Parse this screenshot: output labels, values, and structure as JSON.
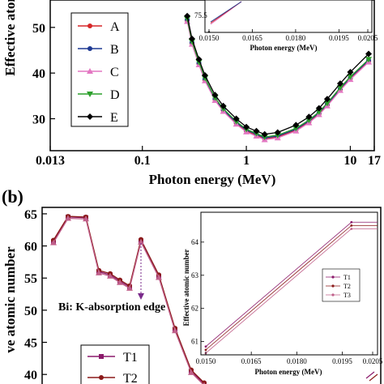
{
  "panel_labels": {
    "a": "",
    "b": "(b)"
  },
  "colors": {
    "A": "#d62728",
    "B": "#1f3a93",
    "C": "#e377c2",
    "D": "#2ca02c",
    "E": "#000000",
    "T1": "#8b1a6b",
    "T2": "#8b1a1a",
    "T3": "#c0608a"
  },
  "chart_data": [
    {
      "id": "a-main",
      "type": "line",
      "xlabel": "Photon energy (MeV)",
      "ylabel": "Effective atomic",
      "xscale": "log",
      "xticks": [
        "0.013",
        "0.1",
        "1",
        "10",
        "17"
      ],
      "yticks": [
        "30",
        "40",
        "50"
      ],
      "legend": [
        "A",
        "B",
        "C",
        "D",
        "E"
      ],
      "legend_placement": "top-left",
      "x": [
        0.27,
        0.3,
        0.35,
        0.4,
        0.5,
        0.6,
        0.8,
        1.0,
        1.25,
        1.5,
        2.0,
        3.0,
        4.0,
        5.0,
        6.0,
        8.0,
        10.0,
        15.0
      ],
      "series": [
        {
          "name": "A",
          "values": [
            51.5,
            46.5,
            42.0,
            38.5,
            34.2,
            31.8,
            29.0,
            27.3,
            26.4,
            25.6,
            26.0,
            27.5,
            29.3,
            31.1,
            33.0,
            36.4,
            38.8,
            42.6
          ]
        },
        {
          "name": "B",
          "values": [
            51.7,
            46.7,
            42.2,
            38.7,
            34.4,
            32.0,
            29.2,
            27.5,
            26.6,
            25.8,
            26.2,
            27.7,
            29.5,
            31.3,
            33.2,
            36.6,
            39.0,
            42.8
          ]
        },
        {
          "name": "C",
          "values": [
            51.3,
            46.3,
            41.8,
            38.3,
            34.0,
            31.6,
            28.8,
            27.1,
            26.2,
            25.4,
            25.8,
            27.3,
            29.1,
            30.9,
            32.8,
            36.2,
            38.6,
            42.4
          ]
        },
        {
          "name": "D",
          "values": [
            51.9,
            46.9,
            42.4,
            38.9,
            34.6,
            32.2,
            29.4,
            27.7,
            26.8,
            26.0,
            26.4,
            27.9,
            29.7,
            31.5,
            33.4,
            36.8,
            39.2,
            43.0
          ]
        },
        {
          "name": "E",
          "values": [
            52.5,
            47.5,
            43.0,
            39.5,
            35.2,
            32.8,
            30.0,
            28.2,
            27.3,
            26.6,
            27.0,
            28.6,
            30.4,
            32.3,
            34.3,
            37.7,
            40.2,
            44.2
          ]
        }
      ]
    },
    {
      "id": "a-inset",
      "type": "line",
      "xlabel": "Photon energy (MeV)",
      "xticks": [
        "0.0150",
        "0.0165",
        "0.0180",
        "0.0195",
        "0.0205"
      ],
      "yticks": [
        "75.5"
      ]
    },
    {
      "id": "b-main",
      "type": "line",
      "ylabel": "ve atomic number",
      "yticks": [
        "40",
        "45",
        "50",
        "55",
        "60",
        "65"
      ],
      "legend": [
        "T1",
        "T2"
      ],
      "legend_placement": "bottom-left",
      "annotation": "Bi: K-absorption edge",
      "series": [
        {
          "name": "T1",
          "values": [
            60.7,
            64.5,
            64.4,
            56.0,
            55.5,
            54.5,
            53.6,
            60.8,
            55.3,
            47.0,
            40.5,
            38.5
          ]
        },
        {
          "name": "T2",
          "values": [
            60.9,
            64.6,
            64.5,
            56.2,
            55.7,
            54.7,
            53.8,
            61.0,
            55.5,
            47.2,
            40.7,
            38.7
          ]
        },
        {
          "name": "T3",
          "values": [
            60.5,
            64.3,
            64.2,
            55.8,
            55.3,
            54.3,
            53.4,
            60.6,
            55.1,
            46.8,
            40.3,
            38.3
          ]
        }
      ]
    },
    {
      "id": "b-inset",
      "type": "line",
      "xlabel": "Photon energy (MeV)",
      "ylabel": "Effective atomic number",
      "xticks": [
        "0.0150",
        "0.0165",
        "0.0180",
        "0.0195",
        "0.0205"
      ],
      "yticks": [
        "61",
        "62",
        "63",
        "64"
      ],
      "legend": [
        "T1",
        "T2",
        "T3"
      ],
      "legend_placement": "bottom-right",
      "x": [
        0.015,
        0.0198
      ],
      "series": [
        {
          "name": "T1",
          "values": [
            60.85,
            64.6
          ]
        },
        {
          "name": "T2",
          "values": [
            60.75,
            64.5
          ]
        },
        {
          "name": "T3",
          "values": [
            60.65,
            64.4
          ]
        }
      ]
    }
  ]
}
